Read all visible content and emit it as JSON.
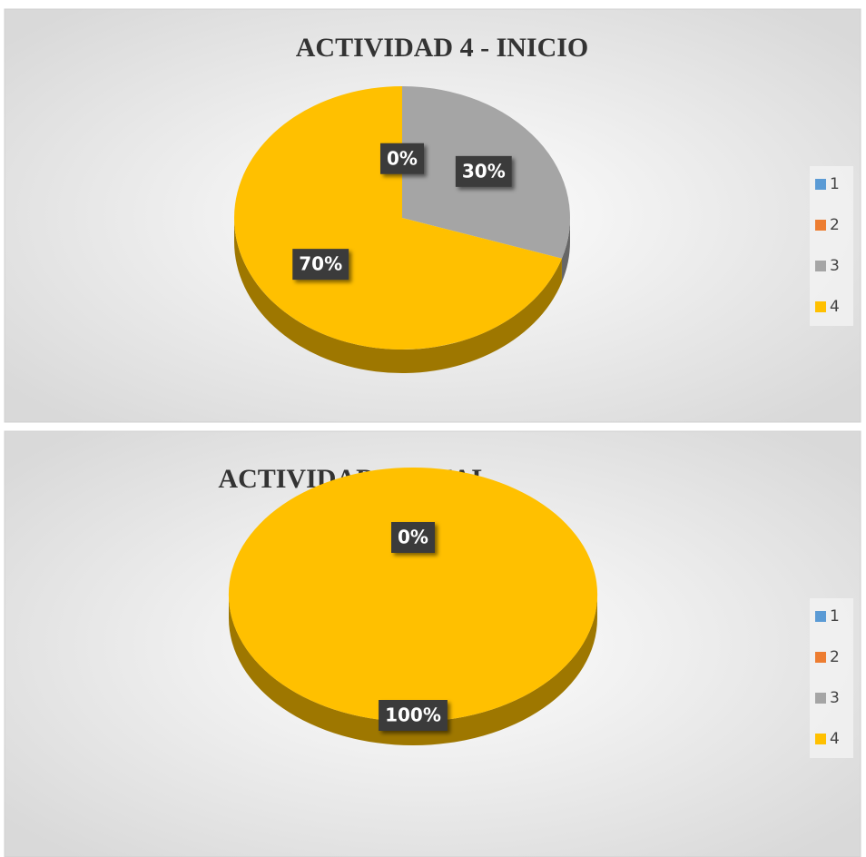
{
  "chart_data": [
    {
      "type": "pie",
      "title": "ACTIVIDAD 4 - INICIO",
      "categories": [
        "1",
        "2",
        "3",
        "4"
      ],
      "values": [
        0,
        0,
        30,
        70
      ],
      "value_labels": [
        null,
        "0%",
        "30%",
        "70%"
      ],
      "colors": [
        "#5b9bd5",
        "#ed7d31",
        "#a5a5a5",
        "#ffc000"
      ],
      "legend": "right"
    },
    {
      "type": "pie",
      "title": "ACTIVIDAD 4-FINAL",
      "categories": [
        "1",
        "2",
        "3",
        "4"
      ],
      "values": [
        0,
        0,
        0,
        100
      ],
      "value_labels": [
        null,
        null,
        "0%",
        "100%"
      ],
      "colors": [
        "#5b9bd5",
        "#ed7d31",
        "#a5a5a5",
        "#ffc000"
      ],
      "legend": "right"
    }
  ]
}
